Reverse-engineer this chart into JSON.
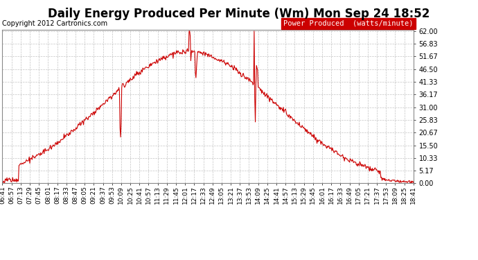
{
  "title": "Daily Energy Produced Per Minute (Wm) Mon Sep 24 18:52",
  "copyright": "Copyright 2012 Cartronics.com",
  "legend_label": "Power Produced  (watts/minute)",
  "legend_bg": "#cc0000",
  "legend_fg": "#ffffff",
  "line_color": "#cc0000",
  "bg_color": "#ffffff",
  "grid_color": "#aaaaaa",
  "y_ticks": [
    0.0,
    5.17,
    10.33,
    15.5,
    20.67,
    25.83,
    31.0,
    36.17,
    41.33,
    46.5,
    51.67,
    56.83,
    62.0
  ],
  "x_labels": [
    "06:41",
    "06:57",
    "07:13",
    "07:29",
    "07:45",
    "08:01",
    "08:17",
    "08:33",
    "08:47",
    "09:05",
    "09:21",
    "09:37",
    "09:53",
    "10:09",
    "10:25",
    "10:41",
    "10:57",
    "11:13",
    "11:29",
    "11:45",
    "12:01",
    "12:17",
    "12:33",
    "12:49",
    "13:05",
    "13:21",
    "13:37",
    "13:53",
    "14:09",
    "14:25",
    "14:41",
    "14:57",
    "15:13",
    "15:29",
    "15:45",
    "16:01",
    "16:17",
    "16:33",
    "16:49",
    "17:05",
    "17:21",
    "17:37",
    "17:53",
    "18:09",
    "18:25",
    "18:41"
  ],
  "ymax": 62.0,
  "ymin": 0.0,
  "title_fontsize": 12,
  "copyright_fontsize": 7,
  "legend_fontsize": 7.5,
  "tick_fontsize": 7,
  "line_width": 0.8
}
